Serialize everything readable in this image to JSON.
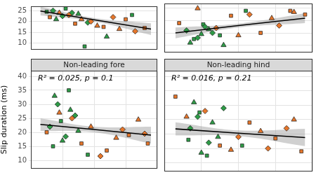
{
  "chart_data": [
    {
      "type": "scatter",
      "grid": true,
      "tick_labels": "y",
      "xlim": [
        0,
        4
      ],
      "xticks": [
        0,
        1,
        2,
        3,
        4
      ],
      "ylim": [
        7,
        27
      ],
      "yticks": [
        10,
        15,
        20,
        25
      ],
      "series": [
        {
          "color": "#e6762b",
          "marker": "square",
          "x": [
            0.6,
            1.4,
            2.3,
            3.0,
            3.6
          ],
          "y": [
            22,
            19,
            17.5,
            21,
            17
          ]
        },
        {
          "color": "#e6762b",
          "marker": "triangle",
          "x": [
            0.9,
            1.6,
            2.1,
            2.8
          ],
          "y": [
            24,
            21,
            18,
            16.5
          ]
        },
        {
          "color": "#e6762b",
          "marker": "diamond",
          "x": [
            1.2,
            1.9,
            2.6,
            3.3
          ],
          "y": [
            23,
            20,
            22,
            15.5
          ]
        },
        {
          "color": "#2e9b47",
          "marker": "diamond",
          "x": [
            0.7,
            1.0,
            1.3,
            1.8
          ],
          "y": [
            25,
            22.5,
            24,
            19.5
          ]
        },
        {
          "color": "#2e9b47",
          "marker": "triangle",
          "x": [
            0.8,
            1.5,
            2.4
          ],
          "y": [
            21,
            23.5,
            13
          ]
        },
        {
          "color": "#2e9b47",
          "marker": "square",
          "x": [
            0.5,
            1.1,
            1.7,
            3.2
          ],
          "y": [
            24.5,
            26,
            8.5,
            23
          ]
        }
      ],
      "fit": {
        "x": [
          0.3,
          2,
          3.8
        ],
        "y": [
          24.8,
          20.8,
          16.5
        ],
        "lower": [
          22.8,
          20,
          13.8
        ],
        "upper": [
          26.8,
          21.6,
          19.2
        ]
      }
    },
    {
      "type": "scatter",
      "grid": true,
      "tick_labels": false,
      "xlim": [
        0,
        4
      ],
      "xticks": [
        0,
        1,
        2,
        3,
        4
      ],
      "ylim": [
        7,
        27
      ],
      "yticks": [
        10,
        15,
        20,
        25
      ],
      "series": [
        {
          "color": "#e6762b",
          "marker": "square",
          "x": [
            0.4,
            1.8,
            2.6,
            3.4,
            3.8
          ],
          "y": [
            19,
            22,
            15,
            24,
            22.5
          ]
        },
        {
          "color": "#e6762b",
          "marker": "triangle",
          "x": [
            0.9,
            2.0,
            2.9,
            3.5
          ],
          "y": [
            25,
            14,
            21,
            23.5
          ]
        },
        {
          "color": "#e6762b",
          "marker": "diamond",
          "x": [
            1.4,
            2.3,
            3.1
          ],
          "y": [
            17,
            22.5,
            18
          ]
        },
        {
          "color": "#2e9b47",
          "marker": "diamond",
          "x": [
            0.6,
            0.9,
            1.1,
            1.3
          ],
          "y": [
            16,
            13,
            17.5,
            15
          ]
        },
        {
          "color": "#2e9b47",
          "marker": "triangle",
          "x": [
            0.7,
            1.0,
            1.2,
            1.6
          ],
          "y": [
            11,
            14.5,
            16.5,
            10
          ]
        },
        {
          "color": "#2e9b47",
          "marker": "square",
          "x": [
            0.8,
            1.05,
            1.5,
            2.2
          ],
          "y": [
            12.5,
            18.5,
            14,
            24
          ]
        }
      ],
      "fit": {
        "x": [
          0.3,
          2,
          3.8
        ],
        "y": [
          15,
          18,
          21
        ],
        "lower": [
          12.8,
          17.2,
          19
        ],
        "upper": [
          17.2,
          18.8,
          23
        ]
      }
    },
    {
      "type": "scatter",
      "title": "Non-leading fore",
      "annotation": "R² = 0.025, p = 0.1",
      "y_label": "Slip duration (ms)",
      "grid": true,
      "tick_labels": "y",
      "xlim": [
        0,
        4
      ],
      "xticks": [
        0,
        1,
        2,
        3,
        4
      ],
      "ylim": [
        7,
        42
      ],
      "yticks": [
        10,
        15,
        20,
        25,
        30,
        35,
        40
      ],
      "series": [
        {
          "color": "#e6762b",
          "marker": "square",
          "x": [
            0.5,
            1.6,
            2.4,
            3.1,
            3.7
          ],
          "y": [
            20,
            16,
            13.5,
            19,
            16
          ]
        },
        {
          "color": "#e6762b",
          "marker": "triangle",
          "x": [
            0.9,
            1.9,
            2.7,
            3.4
          ],
          "y": [
            27,
            22,
            18,
            24.5
          ]
        },
        {
          "color": "#e6762b",
          "marker": "diamond",
          "x": [
            1.3,
            2.2,
            2.9,
            3.6
          ],
          "y": [
            25,
            11.5,
            21,
            19.5
          ]
        },
        {
          "color": "#2e9b47",
          "marker": "diamond",
          "x": [
            0.6,
            0.85,
            1.1,
            1.4
          ],
          "y": [
            22,
            30,
            18.5,
            26
          ]
        },
        {
          "color": "#2e9b47",
          "marker": "triangle",
          "x": [
            0.75,
            1.0,
            1.25,
            1.5
          ],
          "y": [
            33,
            17,
            28,
            20.5
          ]
        },
        {
          "color": "#2e9b47",
          "marker": "square",
          "x": [
            0.7,
            0.95,
            1.2,
            1.8
          ],
          "y": [
            15,
            24,
            35,
            12
          ]
        }
      ],
      "fit": {
        "x": [
          0.3,
          2,
          3.8
        ],
        "y": [
          22.8,
          21,
          19
        ],
        "lower": [
          20.5,
          20,
          16
        ],
        "upper": [
          25,
          22,
          22
        ]
      }
    },
    {
      "type": "scatter",
      "title": "Non-leading hind",
      "annotation": "R² = 0.016, p = 0.21",
      "grid": true,
      "tick_labels": false,
      "xlim": [
        0,
        4
      ],
      "xticks": [
        0,
        1,
        2,
        3,
        4
      ],
      "ylim": [
        7,
        42
      ],
      "yticks": [
        10,
        15,
        20,
        25,
        30,
        35,
        40
      ],
      "series": [
        {
          "color": "#e6762b",
          "marker": "square",
          "x": [
            0.3,
            1.5,
            2.3,
            3.0,
            3.7
          ],
          "y": [
            33,
            16,
            24,
            18.5,
            14
          ]
        },
        {
          "color": "#e6762b",
          "marker": "triangle",
          "x": [
            0.6,
            1.8,
            2.6,
            3.5
          ],
          "y": [
            26,
            14.5,
            21,
            25
          ]
        },
        {
          "color": "#e6762b",
          "marker": "diamond",
          "x": [
            1.1,
            2.0,
            2.8,
            3.3
          ],
          "y": [
            28,
            19,
            15,
            22
          ]
        },
        {
          "color": "#2e9b47",
          "marker": "diamond",
          "x": [
            0.7,
            0.9,
            1.2,
            1.6
          ],
          "y": [
            22,
            26,
            17,
            29
          ]
        },
        {
          "color": "#2e9b47",
          "marker": "triangle",
          "x": [
            0.8,
            1.0,
            1.3,
            1.45
          ],
          "y": [
            31,
            13.5,
            24,
            19
          ]
        },
        {
          "color": "#2e9b47",
          "marker": "square",
          "x": [
            0.65,
            0.95,
            1.15,
            2.1
          ],
          "y": [
            18,
            27.5,
            12.5,
            16
          ]
        }
      ],
      "fit": {
        "x": [
          0.3,
          2,
          3.8
        ],
        "y": [
          21.8,
          20.3,
          18.8
        ],
        "lower": [
          19.5,
          19.3,
          15.8
        ],
        "upper": [
          24.1,
          21.3,
          21.8
        ]
      }
    }
  ]
}
